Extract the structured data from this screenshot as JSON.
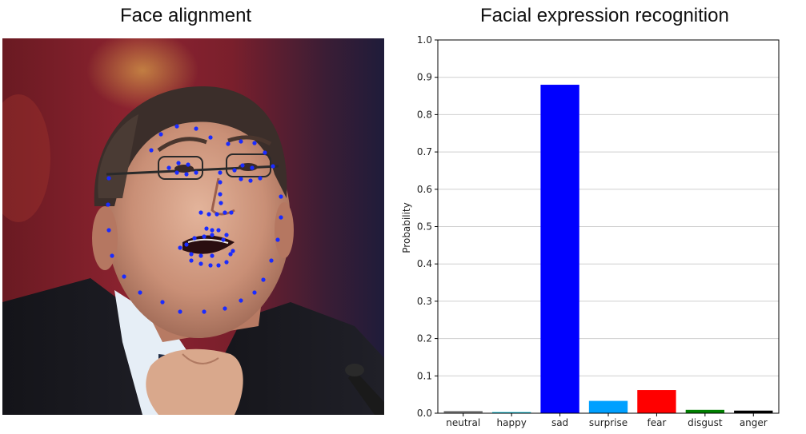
{
  "panels": {
    "left_title": "Face alignment",
    "right_title": "Facial expression recognition"
  },
  "face_image": {
    "landmark_color": "#1a2bff",
    "landmark_count": 68
  },
  "chart_data": {
    "type": "bar",
    "title": "Facial expression recognition",
    "xlabel": "",
    "ylabel": "Probability",
    "ylim": [
      0,
      1.0
    ],
    "yticks": [
      "0.0",
      "0.1",
      "0.2",
      "0.3",
      "0.4",
      "0.5",
      "0.6",
      "0.7",
      "0.8",
      "0.9",
      "1.0"
    ],
    "grid": true,
    "categories": [
      "neutral",
      "happy",
      "sad",
      "surprise",
      "fear",
      "disgust",
      "anger"
    ],
    "values": [
      0.006,
      0.003,
      0.88,
      0.033,
      0.062,
      0.009,
      0.007
    ],
    "colors": [
      "#808080",
      "#00bcd4",
      "#0000ff",
      "#00a0ff",
      "#ff0000",
      "#008000",
      "#000000"
    ]
  }
}
